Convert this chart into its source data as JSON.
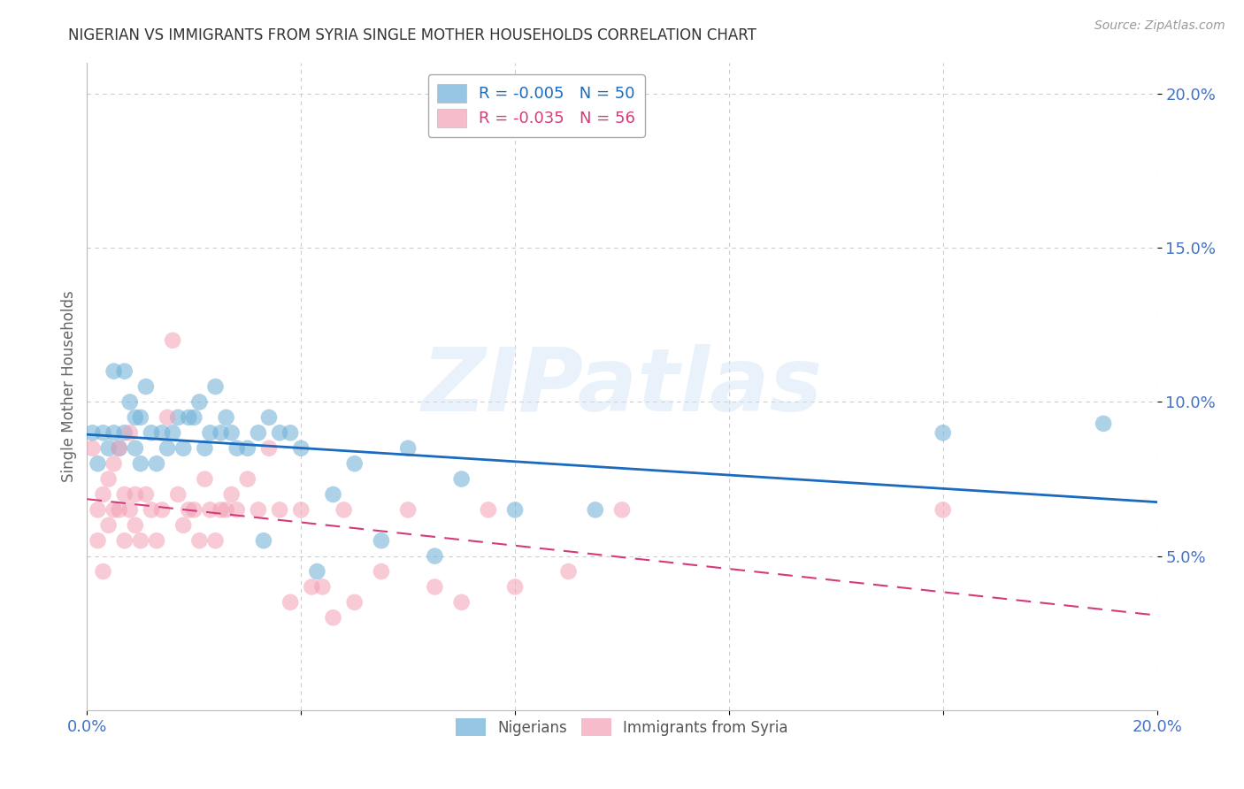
{
  "title": "NIGERIAN VS IMMIGRANTS FROM SYRIA SINGLE MOTHER HOUSEHOLDS CORRELATION CHART",
  "source": "Source: ZipAtlas.com",
  "ylabel": "Single Mother Households",
  "xlim": [
    0.0,
    0.2
  ],
  "ylim": [
    0.0,
    0.21
  ],
  "x_ticks": [
    0.0,
    0.04,
    0.08,
    0.12,
    0.16,
    0.2
  ],
  "x_tick_labels": [
    "0.0%",
    "",
    "",
    "",
    "",
    "20.0%"
  ],
  "y_ticks_right": [
    0.05,
    0.1,
    0.15,
    0.2
  ],
  "y_tick_labels_right": [
    "5.0%",
    "10.0%",
    "15.0%",
    "20.0%"
  ],
  "nigerians_R": -0.005,
  "nigerians_N": 50,
  "syrians_R": -0.035,
  "syrians_N": 56,
  "nigerians_color": "#6baed6",
  "syrians_color": "#f4a0b5",
  "nigerians_trend_color": "#1a6bbf",
  "syrians_trend_color": "#d63a7a",
  "watermark_text": "ZIPatlas",
  "background_color": "#ffffff",
  "grid_color": "#cccccc",
  "title_color": "#333333",
  "axis_label_color": "#666666",
  "tick_label_color": "#4472c4",
  "nigerians_x": [
    0.001,
    0.002,
    0.003,
    0.004,
    0.005,
    0.005,
    0.006,
    0.007,
    0.007,
    0.008,
    0.009,
    0.009,
    0.01,
    0.01,
    0.011,
    0.012,
    0.013,
    0.014,
    0.015,
    0.016,
    0.017,
    0.018,
    0.019,
    0.02,
    0.021,
    0.022,
    0.023,
    0.024,
    0.025,
    0.026,
    0.027,
    0.028,
    0.03,
    0.032,
    0.033,
    0.034,
    0.036,
    0.038,
    0.04,
    0.043,
    0.046,
    0.05,
    0.055,
    0.06,
    0.065,
    0.07,
    0.08,
    0.095,
    0.16,
    0.19
  ],
  "nigerians_y": [
    0.09,
    0.08,
    0.09,
    0.085,
    0.11,
    0.09,
    0.085,
    0.11,
    0.09,
    0.1,
    0.095,
    0.085,
    0.095,
    0.08,
    0.105,
    0.09,
    0.08,
    0.09,
    0.085,
    0.09,
    0.095,
    0.085,
    0.095,
    0.095,
    0.1,
    0.085,
    0.09,
    0.105,
    0.09,
    0.095,
    0.09,
    0.085,
    0.085,
    0.09,
    0.055,
    0.095,
    0.09,
    0.09,
    0.085,
    0.045,
    0.07,
    0.08,
    0.055,
    0.085,
    0.05,
    0.075,
    0.065,
    0.065,
    0.09,
    0.093
  ],
  "syrians_x": [
    0.001,
    0.002,
    0.002,
    0.003,
    0.003,
    0.004,
    0.004,
    0.005,
    0.005,
    0.006,
    0.006,
    0.007,
    0.007,
    0.008,
    0.008,
    0.009,
    0.009,
    0.01,
    0.011,
    0.012,
    0.013,
    0.014,
    0.015,
    0.016,
    0.017,
    0.018,
    0.019,
    0.02,
    0.021,
    0.022,
    0.023,
    0.024,
    0.025,
    0.026,
    0.027,
    0.028,
    0.03,
    0.032,
    0.034,
    0.036,
    0.038,
    0.04,
    0.042,
    0.044,
    0.046,
    0.048,
    0.05,
    0.055,
    0.06,
    0.065,
    0.07,
    0.075,
    0.08,
    0.09,
    0.1,
    0.16
  ],
  "syrians_y": [
    0.085,
    0.065,
    0.055,
    0.07,
    0.045,
    0.075,
    0.06,
    0.065,
    0.08,
    0.065,
    0.085,
    0.055,
    0.07,
    0.065,
    0.09,
    0.06,
    0.07,
    0.055,
    0.07,
    0.065,
    0.055,
    0.065,
    0.095,
    0.12,
    0.07,
    0.06,
    0.065,
    0.065,
    0.055,
    0.075,
    0.065,
    0.055,
    0.065,
    0.065,
    0.07,
    0.065,
    0.075,
    0.065,
    0.085,
    0.065,
    0.035,
    0.065,
    0.04,
    0.04,
    0.03,
    0.065,
    0.035,
    0.045,
    0.065,
    0.04,
    0.035,
    0.065,
    0.04,
    0.045,
    0.065,
    0.065
  ]
}
